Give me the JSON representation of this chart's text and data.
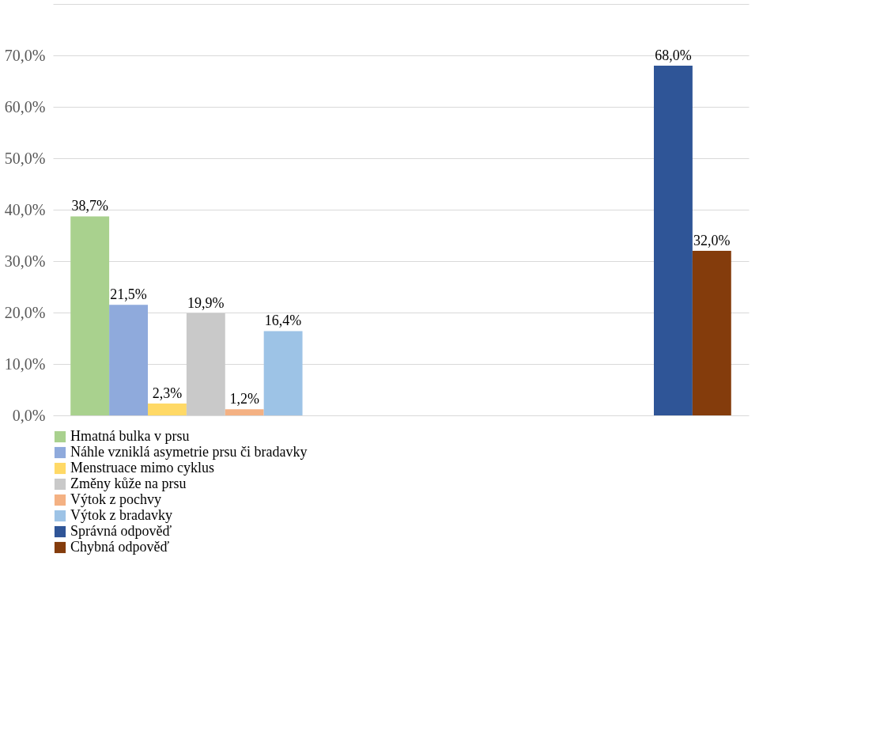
{
  "chart_data": {
    "type": "bar",
    "categories": [
      null,
      null
    ],
    "series": [
      {
        "name": "Hmatná bulka v prsu",
        "color": "#a9d18e",
        "values": [
          38.7,
          null
        ],
        "value_labels": [
          "38,7%",
          null
        ]
      },
      {
        "name": "Náhle vzniklá asymetrie prsu či bradavky",
        "color": "#8faadc",
        "values": [
          21.5,
          null
        ],
        "value_labels": [
          "21,5%",
          null
        ]
      },
      {
        "name": "Menstruace mimo cyklus",
        "color": "#ffd966",
        "values": [
          2.3,
          null
        ],
        "value_labels": [
          "2,3%",
          null
        ]
      },
      {
        "name": "Změny kůže na prsu",
        "color": "#c9c9c9",
        "values": [
          19.9,
          null
        ],
        "value_labels": [
          "19,9%",
          null
        ]
      },
      {
        "name": "Výtok z pochvy",
        "color": "#f4b183",
        "values": [
          1.2,
          null
        ],
        "value_labels": [
          "1,2%",
          null
        ]
      },
      {
        "name": "Výtok z bradavky",
        "color": "#9dc3e6",
        "values": [
          16.4,
          null
        ],
        "value_labels": [
          "16,4%",
          null
        ]
      },
      {
        "name": "Správná odpověď",
        "color": "#2f5597",
        "values": [
          null,
          68.0
        ],
        "value_labels": [
          null,
          "68,0%"
        ]
      },
      {
        "name": "Chybná odpověď",
        "color": "#843c0c",
        "values": [
          null,
          32.0
        ],
        "value_labels": [
          null,
          "32,0%"
        ]
      }
    ],
    "ylim": [
      0,
      80
    ],
    "yticks": [
      {
        "value": 0,
        "label": "0,0%"
      },
      {
        "value": 10,
        "label": "10,0%"
      },
      {
        "value": 20,
        "label": "20,0%"
      },
      {
        "value": 30,
        "label": "30,0%"
      },
      {
        "value": 40,
        "label": "40,0%"
      },
      {
        "value": 50,
        "label": "50,0%"
      },
      {
        "value": 60,
        "label": "60,0%"
      },
      {
        "value": 70,
        "label": "70,0%"
      },
      {
        "value": 80,
        "label": null
      }
    ],
    "grid": "y",
    "legend": "bottom",
    "tick_labels": "y"
  }
}
